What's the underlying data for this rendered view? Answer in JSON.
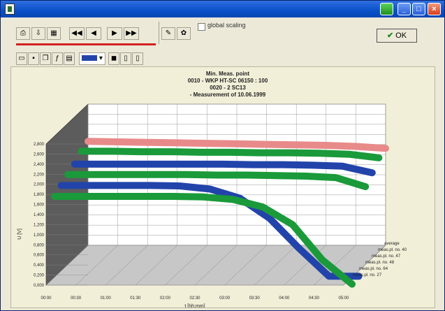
{
  "toolbar": {
    "global_scaling_label": "global scaling",
    "ok_label": "OK",
    "nav": [
      "◀◀",
      "◀",
      "▶",
      "▶▶"
    ]
  },
  "chart_data": {
    "type": "line",
    "title_lines": [
      "Min. Meas. point",
      "0010 - WKP HT-SC 06150 : 100",
      "0020 - 2 SC13",
      "- Measurement of 10.06.1999"
    ],
    "xlabel": "t [hh:mm]",
    "ylabel": "U [V]",
    "x": [
      "00:00",
      "00:30",
      "01:00",
      "01:30",
      "02:00",
      "02:30",
      "03:00",
      "03:30",
      "04:00",
      "04:30",
      "05:00"
    ],
    "y_ticks": [
      "0,000",
      "0,200",
      "0,400",
      "0,600",
      "0,800",
      "1,000",
      "1,200",
      "1,400",
      "1,600",
      "1,800",
      "2,000",
      "2,200",
      "2,400",
      "2,600",
      "2,800"
    ],
    "ylim": [
      0,
      2.8
    ],
    "grid": true,
    "legend_position": "bottom-right",
    "series": [
      {
        "name": "average",
        "color": "#e88a8a",
        "depth": 0,
        "values": [
          2.22,
          2.21,
          2.2,
          2.19,
          2.18,
          2.17,
          2.16,
          2.15,
          2.14,
          2.12,
          2.08
        ]
      },
      {
        "name": "meas.pl. no. 40",
        "color": "#1a9a3a",
        "depth": 1,
        "values": [
          2.15,
          2.15,
          2.14,
          2.14,
          2.13,
          2.13,
          2.12,
          2.12,
          2.11,
          2.09,
          2.02
        ]
      },
      {
        "name": "meas.pl. no. 47",
        "color": "#2244aa",
        "depth": 2,
        "values": [
          2.02,
          2.02,
          2.02,
          2.02,
          2.02,
          2.02,
          2.01,
          2.01,
          2.0,
          1.98,
          1.85
        ]
      },
      {
        "name": "meas.pl. no. 48",
        "color": "#1a9a3a",
        "depth": 3,
        "values": [
          1.94,
          1.94,
          1.94,
          1.94,
          1.94,
          1.93,
          1.93,
          1.92,
          1.91,
          1.88,
          1.7
        ]
      },
      {
        "name": "meas.pl. no. 64",
        "color": "#2244aa",
        "depth": 4,
        "values": [
          1.85,
          1.85,
          1.85,
          1.85,
          1.84,
          1.78,
          1.6,
          1.2,
          0.6,
          0.05,
          0.05
        ]
      },
      {
        "name": "meas.pl. no. 27",
        "color": "#1a9a3a",
        "depth": 5,
        "values": [
          1.76,
          1.76,
          1.76,
          1.76,
          1.76,
          1.75,
          1.7,
          1.55,
          1.2,
          0.5,
          0.02
        ]
      }
    ]
  }
}
